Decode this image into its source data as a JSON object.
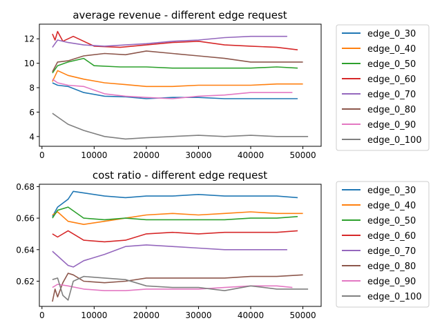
{
  "chart_data": [
    {
      "type": "line",
      "title": "average revenue - different edge request",
      "xlabel": "",
      "ylabel": "",
      "xlim": [
        -500,
        53500
      ],
      "ylim": [
        3.2,
        13.2
      ],
      "xticks": [
        0,
        10000,
        20000,
        30000,
        40000,
        50000
      ],
      "yticks": [
        4,
        6,
        8,
        10,
        12
      ],
      "ytick_decimals": 0,
      "grid": false,
      "legend": "outside-right",
      "series": [
        {
          "name": "edge_0_30",
          "color": "#1f77b4",
          "x": [
            2000,
            3000,
            5000,
            8000,
            12000,
            16000,
            20000,
            25000,
            30000,
            35000,
            40000,
            45000,
            49000
          ],
          "y": [
            8.4,
            8.2,
            8.1,
            7.6,
            7.3,
            7.25,
            7.1,
            7.2,
            7.2,
            7.1,
            7.1,
            7.1,
            7.1
          ]
        },
        {
          "name": "edge_0_40",
          "color": "#ff7f0e",
          "x": [
            2000,
            3000,
            5000,
            8000,
            12000,
            16000,
            20000,
            25000,
            30000,
            35000,
            40000,
            45000,
            50000
          ],
          "y": [
            8.5,
            9.4,
            9.0,
            8.7,
            8.4,
            8.25,
            8.1,
            8.1,
            8.2,
            8.2,
            8.2,
            8.3,
            8.3
          ]
        },
        {
          "name": "edge_0_50",
          "color": "#2ca02c",
          "x": [
            2000,
            3000,
            5000,
            8000,
            10000,
            15000,
            20000,
            25000,
            30000,
            35000,
            40000,
            45000,
            49000
          ],
          "y": [
            9.2,
            9.8,
            10.1,
            10.4,
            9.8,
            9.7,
            9.7,
            9.6,
            9.6,
            9.6,
            9.6,
            9.7,
            9.6
          ]
        },
        {
          "name": "edge_0_60",
          "color": "#d62728",
          "x": [
            2000,
            2500,
            3000,
            4000,
            6000,
            10000,
            15000,
            20000,
            25000,
            30000,
            35000,
            40000,
            45000,
            49000
          ],
          "y": [
            12.4,
            11.9,
            12.6,
            11.8,
            12.2,
            11.4,
            11.3,
            11.5,
            11.7,
            11.8,
            11.5,
            11.4,
            11.3,
            11.1
          ]
        },
        {
          "name": "edge_0_70",
          "color": "#9467bd",
          "x": [
            2000,
            3000,
            5000,
            8000,
            12000,
            16000,
            20000,
            25000,
            30000,
            35000,
            40000,
            44000,
            47000
          ],
          "y": [
            11.3,
            11.9,
            11.7,
            11.5,
            11.4,
            11.5,
            11.6,
            11.8,
            11.9,
            12.1,
            12.2,
            12.2,
            12.2
          ]
        },
        {
          "name": "edge_0_80",
          "color": "#8c564b",
          "x": [
            2000,
            3000,
            5000,
            8000,
            12000,
            16000,
            20000,
            25000,
            30000,
            35000,
            40000,
            45000,
            50000
          ],
          "y": [
            9.3,
            10.1,
            10.2,
            10.6,
            10.8,
            10.7,
            11.0,
            10.8,
            10.6,
            10.4,
            10.1,
            10.1,
            10.1
          ]
        },
        {
          "name": "edge_0_90",
          "color": "#e377c2",
          "x": [
            2000,
            3000,
            5000,
            8000,
            12000,
            16000,
            20000,
            25000,
            30000,
            35000,
            40000,
            45000,
            48000
          ],
          "y": [
            8.7,
            8.4,
            8.2,
            8.1,
            7.5,
            7.3,
            7.2,
            7.1,
            7.3,
            7.4,
            7.6,
            7.6,
            7.6
          ]
        },
        {
          "name": "edge_0_100",
          "color": "#7f7f7f",
          "x": [
            2000,
            3000,
            5000,
            8000,
            12000,
            16000,
            20000,
            25000,
            30000,
            35000,
            40000,
            45000,
            51000
          ],
          "y": [
            5.9,
            5.6,
            5.0,
            4.5,
            4.0,
            3.8,
            3.9,
            4.0,
            4.1,
            4.0,
            4.1,
            4.0,
            4.0
          ]
        }
      ]
    },
    {
      "type": "line",
      "title": "cost ratio - different edge request",
      "xlabel": "",
      "ylabel": "",
      "xlim": [
        -500,
        53500
      ],
      "ylim": [
        0.604,
        0.6815
      ],
      "xticks": [
        0,
        10000,
        20000,
        30000,
        40000,
        50000
      ],
      "yticks": [
        0.62,
        0.64,
        0.66,
        0.68
      ],
      "ytick_decimals": 2,
      "grid": false,
      "legend": "outside-right",
      "series": [
        {
          "name": "edge_0_30",
          "color": "#1f77b4",
          "x": [
            2000,
            3000,
            5000,
            6000,
            8000,
            12000,
            16000,
            20000,
            25000,
            30000,
            35000,
            40000,
            45000,
            49000
          ],
          "y": [
            0.661,
            0.667,
            0.672,
            0.677,
            0.676,
            0.674,
            0.673,
            0.674,
            0.674,
            0.675,
            0.674,
            0.674,
            0.674,
            0.673
          ]
        },
        {
          "name": "edge_0_40",
          "color": "#ff7f0e",
          "x": [
            2000,
            3000,
            5000,
            8000,
            12000,
            16000,
            20000,
            25000,
            30000,
            35000,
            40000,
            45000,
            50000
          ],
          "y": [
            0.662,
            0.664,
            0.658,
            0.656,
            0.658,
            0.66,
            0.662,
            0.663,
            0.662,
            0.663,
            0.664,
            0.663,
            0.663
          ]
        },
        {
          "name": "edge_0_50",
          "color": "#2ca02c",
          "x": [
            2000,
            3000,
            5000,
            8000,
            12000,
            16000,
            20000,
            25000,
            30000,
            35000,
            40000,
            45000,
            49000
          ],
          "y": [
            0.66,
            0.665,
            0.667,
            0.66,
            0.659,
            0.66,
            0.659,
            0.659,
            0.659,
            0.659,
            0.66,
            0.66,
            0.661
          ]
        },
        {
          "name": "edge_0_60",
          "color": "#d62728",
          "x": [
            2000,
            3000,
            5000,
            8000,
            12000,
            16000,
            20000,
            25000,
            30000,
            35000,
            40000,
            45000,
            49000
          ],
          "y": [
            0.65,
            0.648,
            0.652,
            0.646,
            0.645,
            0.646,
            0.65,
            0.651,
            0.65,
            0.651,
            0.651,
            0.651,
            0.652
          ]
        },
        {
          "name": "edge_0_70",
          "color": "#9467bd",
          "x": [
            2000,
            3000,
            5000,
            6000,
            8000,
            12000,
            16000,
            20000,
            25000,
            30000,
            35000,
            40000,
            44000,
            47000
          ],
          "y": [
            0.639,
            0.636,
            0.63,
            0.629,
            0.633,
            0.637,
            0.642,
            0.643,
            0.642,
            0.641,
            0.64,
            0.64,
            0.64,
            0.64
          ]
        },
        {
          "name": "edge_0_80",
          "color": "#8c564b",
          "x": [
            2000,
            2500,
            3000,
            4000,
            5000,
            6000,
            8000,
            12000,
            16000,
            20000,
            25000,
            30000,
            35000,
            40000,
            45000,
            50000
          ],
          "y": [
            0.607,
            0.615,
            0.61,
            0.619,
            0.625,
            0.624,
            0.62,
            0.619,
            0.62,
            0.622,
            0.622,
            0.622,
            0.622,
            0.623,
            0.623,
            0.624
          ]
        },
        {
          "name": "edge_0_90",
          "color": "#e377c2",
          "x": [
            2000,
            3000,
            5000,
            8000,
            12000,
            16000,
            20000,
            25000,
            30000,
            35000,
            40000,
            45000,
            48000
          ],
          "y": [
            0.616,
            0.618,
            0.617,
            0.615,
            0.614,
            0.614,
            0.615,
            0.615,
            0.615,
            0.616,
            0.617,
            0.617,
            0.616
          ]
        },
        {
          "name": "edge_0_100",
          "color": "#7f7f7f",
          "x": [
            2000,
            3000,
            4000,
            5000,
            6000,
            8000,
            12000,
            16000,
            20000,
            25000,
            30000,
            35000,
            40000,
            45000,
            51000
          ],
          "y": [
            0.621,
            0.622,
            0.611,
            0.608,
            0.62,
            0.623,
            0.622,
            0.621,
            0.617,
            0.616,
            0.616,
            0.614,
            0.617,
            0.615,
            0.615
          ]
        }
      ]
    }
  ]
}
